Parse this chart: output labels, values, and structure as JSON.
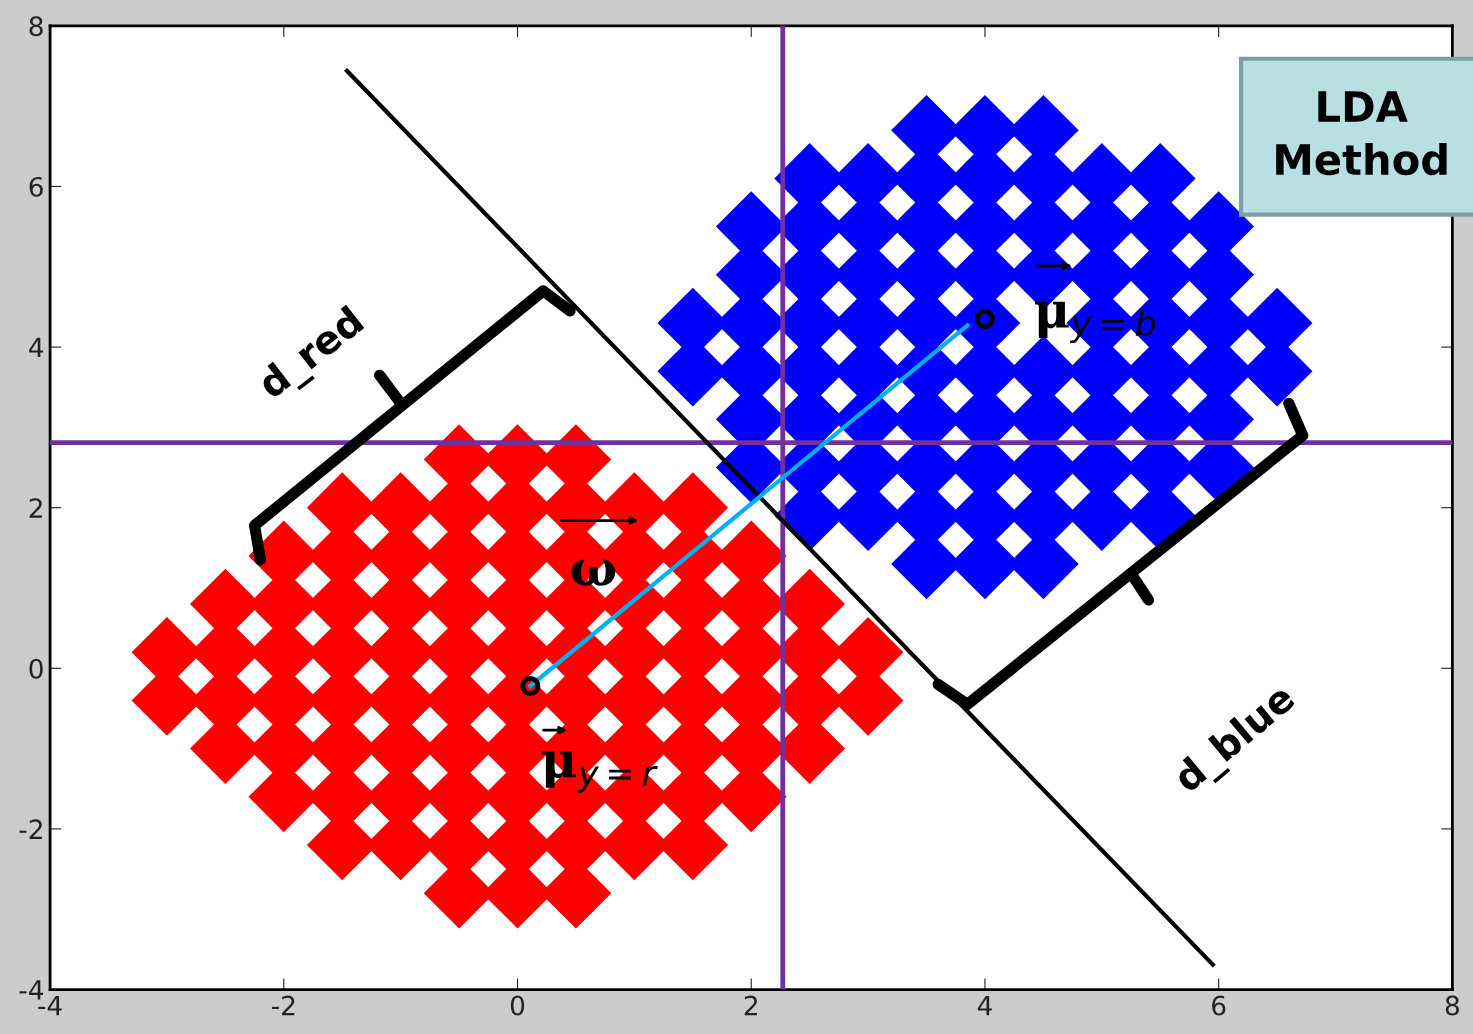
{
  "chart_data": {
    "type": "scatter",
    "xlim": [
      -4,
      8
    ],
    "ylim": [
      -4,
      8
    ],
    "xticks": [
      -4,
      -2,
      0,
      2,
      4,
      6,
      8
    ],
    "yticks": [
      -4,
      -2,
      0,
      2,
      4,
      6,
      8
    ],
    "grid": false,
    "legend": false,
    "marker": "diamond",
    "series": [
      {
        "color": "#ff0000",
        "x": [
          -0.5,
          0,
          0.5,
          -1.5,
          -1,
          -0.5,
          0,
          0.5,
          1,
          1.5,
          -2,
          -1.5,
          -1,
          -0.5,
          0,
          0.5,
          1,
          1.5,
          2,
          -2.5,
          -2,
          -1.5,
          -1,
          -0.5,
          0,
          0.5,
          1,
          1.5,
          2,
          2.5,
          -3,
          -2.5,
          -2,
          -1.5,
          -1,
          -0.5,
          0,
          0.5,
          1,
          1.5,
          2,
          2.5,
          3,
          -3,
          -2.5,
          -2,
          -1.5,
          -1,
          -0.5,
          0,
          0.5,
          1,
          1.5,
          2,
          2.5,
          3,
          -2.5,
          -2,
          -1.5,
          -1,
          -0.5,
          0,
          0.5,
          1,
          1.5,
          2,
          2.5,
          -2,
          -1.5,
          -1,
          -0.5,
          0,
          0.5,
          1,
          1.5,
          2,
          -1.5,
          -1,
          -0.5,
          0,
          0.5,
          1,
          1.5,
          -0.5,
          0,
          0.5
        ],
        "values": [
          -2.8,
          -2.8,
          -2.8,
          -2.2,
          -2.2,
          -2.2,
          -2.2,
          -2.2,
          -2.2,
          -2.2,
          -1.6,
          -1.6,
          -1.6,
          -1.6,
          -1.6,
          -1.6,
          -1.6,
          -1.6,
          -1.6,
          -1,
          -1,
          -1,
          -1,
          -1,
          -1,
          -1,
          -1,
          -1,
          -1,
          -1,
          -0.4,
          -0.4,
          -0.4,
          -0.4,
          -0.4,
          -0.4,
          -0.4,
          -0.4,
          -0.4,
          -0.4,
          -0.4,
          -0.4,
          -0.4,
          0.2,
          0.2,
          0.2,
          0.2,
          0.2,
          0.2,
          0.2,
          0.2,
          0.2,
          0.2,
          0.2,
          0.2,
          0.2,
          0.8,
          0.8,
          0.8,
          0.8,
          0.8,
          0.8,
          0.8,
          0.8,
          0.8,
          0.8,
          0.8,
          1.4,
          1.4,
          1.4,
          1.4,
          1.4,
          1.4,
          1.4,
          1.4,
          1.4,
          2,
          2,
          2,
          2,
          2,
          2,
          2,
          2.6,
          2.6,
          2.6
        ]
      },
      {
        "color": "#0000ff",
        "x": [
          3.5,
          4,
          4.5,
          2.5,
          3,
          3.5,
          4,
          4.5,
          5,
          5.5,
          2,
          2.5,
          3,
          3.5,
          4,
          4.5,
          5,
          5.5,
          6,
          2,
          2.5,
          3,
          3.5,
          4,
          4.5,
          5,
          5.5,
          6,
          1.5,
          2,
          2.5,
          3,
          3.5,
          4,
          4.5,
          5,
          5.5,
          6,
          6.5,
          1.5,
          2,
          2.5,
          3,
          3.5,
          4,
          5,
          5.5,
          6,
          6.5,
          2,
          2.5,
          3,
          3.5,
          4,
          4.5,
          5,
          5.5,
          6,
          2,
          2.5,
          3,
          3.5,
          4,
          4.5,
          5,
          5.5,
          6,
          2.5,
          3,
          3.5,
          4,
          4.5,
          5,
          5.5,
          3.5,
          4,
          4.5
        ],
        "values": [
          1.3,
          1.3,
          1.3,
          1.9,
          1.9,
          1.9,
          1.9,
          1.9,
          1.9,
          1.9,
          2.5,
          2.5,
          2.5,
          2.5,
          2.5,
          2.5,
          2.5,
          2.5,
          2.5,
          3.1,
          3.1,
          3.1,
          3.1,
          3.1,
          3.1,
          3.1,
          3.1,
          3.1,
          3.7,
          3.7,
          3.7,
          3.7,
          3.7,
          3.7,
          3.7,
          3.7,
          3.7,
          3.7,
          3.7,
          4.3,
          4.3,
          4.3,
          4.3,
          4.3,
          4.3,
          4.3,
          4.3,
          4.3,
          4.3,
          4.9,
          4.9,
          4.9,
          4.9,
          4.9,
          4.9,
          4.9,
          4.9,
          4.9,
          5.5,
          5.5,
          5.5,
          5.5,
          5.5,
          5.5,
          5.5,
          5.5,
          5.5,
          6.1,
          6.1,
          6.1,
          6.1,
          6.1,
          6.1,
          6.1,
          6.7,
          6.7,
          6.7
        ]
      },
      {
        "type": "line",
        "color": "#000000",
        "marker": "none",
        "x": [
          -1.46,
          5.95
        ],
        "values": [
          7.44,
          -3.69
        ]
      },
      {
        "type": "line",
        "color": "#00b0f0",
        "marker": "none",
        "x": [
          0.11,
          3.85
        ],
        "values": [
          -0.22,
          4.27
        ]
      },
      {
        "type": "scatter",
        "color": "#000000",
        "marker": "circle",
        "x": [
          0.11,
          4.0
        ],
        "values": [
          -0.22,
          4.35
        ]
      }
    ],
    "ref_lines": [
      {
        "axis": "x",
        "value": 2.27,
        "color": "#7030a0"
      },
      {
        "axis": "y",
        "value": 2.81,
        "color": "#7030a0"
      }
    ],
    "annotations": [
      "μ$_{y=b}$",
      "μ$_{y=r}$",
      "ω",
      "d_red",
      "d_blue",
      "LDA\nMethod"
    ]
  }
}
